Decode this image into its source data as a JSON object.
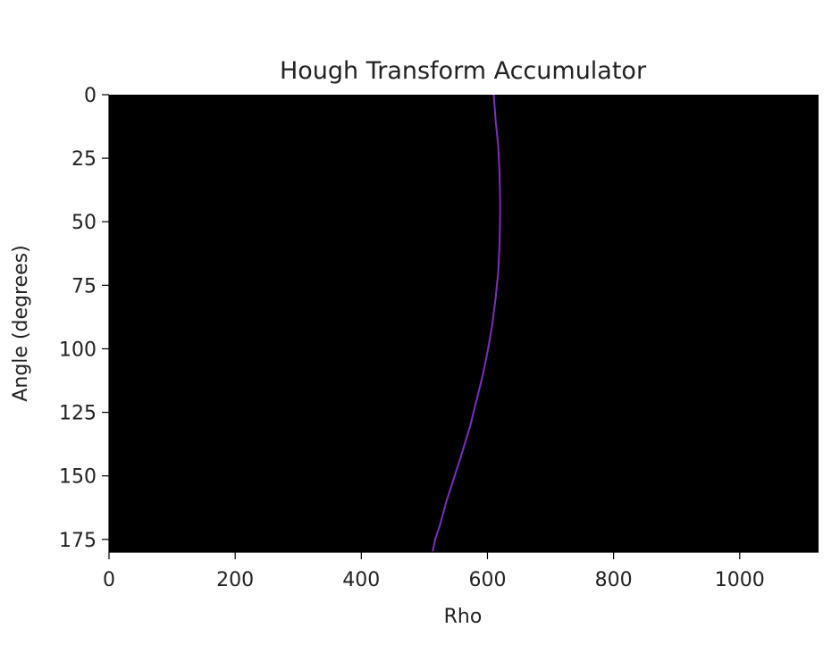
{
  "chart_data": {
    "type": "heatmap",
    "title": "Hough Transform Accumulator",
    "xlabel": "Rho",
    "ylabel": "Angle (degrees)",
    "xlim": [
      0,
      1125
    ],
    "ylim": [
      180,
      0
    ],
    "x_ticks": [
      0,
      200,
      400,
      600,
      800,
      1000
    ],
    "y_ticks": [
      0,
      25,
      50,
      75,
      100,
      125,
      150,
      175
    ],
    "background_color": "#000000",
    "curve_color": "#7b2fbf",
    "grid": false,
    "series": [
      {
        "x": [
          610,
          613,
          617,
          619,
          620,
          620,
          619,
          617,
          613,
          608,
          601,
          593,
          583,
          573,
          561,
          548,
          535,
          524,
          517,
          513
        ],
        "y": [
          0,
          10,
          20,
          30,
          40,
          50,
          60,
          70,
          80,
          90,
          100,
          110,
          120,
          130,
          140,
          150,
          160,
          170,
          175,
          180
        ]
      }
    ]
  }
}
